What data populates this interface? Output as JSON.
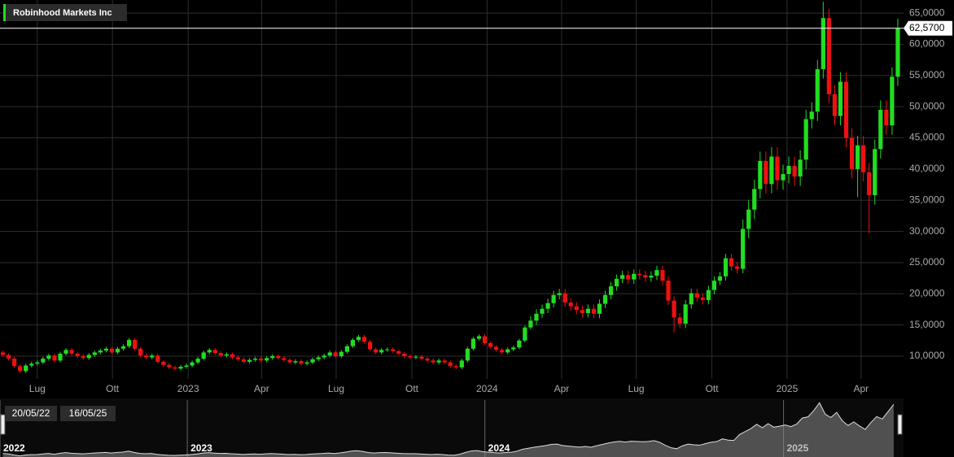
{
  "chart_data": {
    "type": "candlestick",
    "title": "Robinhood Markets Inc",
    "up_color": "#22dd22",
    "down_color": "#ee1111",
    "grid": true,
    "open": [
      10.6,
      10.2,
      9.6,
      8.4,
      7.6,
      8.5,
      8.8,
      9.0,
      9.6,
      10.1,
      9.3,
      10.4,
      11.0,
      10.4,
      10.0,
      9.7,
      10.2,
      10.6,
      10.9,
      11.2,
      10.6,
      11.2,
      11.6,
      12.6,
      11.2,
      10.1,
      9.8,
      10.1,
      9.1,
      8.6,
      8.2,
      8.0,
      8.3,
      8.5,
      9.0,
      9.6,
      10.6,
      11.0,
      10.5,
      10.1,
      10.3,
      9.8,
      9.5,
      9.1,
      9.4,
      9.6,
      9.3,
      9.7,
      10.0,
      9.7,
      9.4,
      9.0,
      9.2,
      8.8,
      9.0,
      9.5,
      9.8,
      10.1,
      10.6,
      10.0,
      10.7,
      11.6,
      12.6,
      13.1,
      12.3,
      11.1,
      10.6,
      11.0,
      11.1,
      10.8,
      10.4,
      10.0,
      9.8,
      9.9,
      9.6,
      9.3,
      9.0,
      9.3,
      9.0,
      8.4,
      8.2,
      9.3,
      11.2,
      12.8,
      13.2,
      12.1,
      11.5,
      11.0,
      10.6,
      11.1,
      11.4,
      12.5,
      14.6,
      15.7,
      16.8,
      17.6,
      18.5,
      19.8,
      20.1,
      18.6,
      18.0,
      17.4,
      16.9,
      17.6,
      16.8,
      18.4,
      19.8,
      21.2,
      22.4,
      23.0,
      22.3,
      23.2,
      23.0,
      22.6,
      22.9,
      23.8,
      22.1,
      18.9,
      16.2,
      15.2,
      18.3,
      20.1,
      19.4,
      19.0,
      20.6,
      22.1,
      22.8,
      25.7,
      24.4,
      24.0,
      30.4,
      33.5,
      36.8,
      41.3,
      37.6,
      42.0,
      38.2,
      39.2,
      40.5,
      38.8,
      41.5,
      48.0,
      49.2,
      56.0,
      64.2,
      52.0,
      48.5,
      54.0,
      45.0,
      40.0,
      43.8,
      39.5,
      35.8,
      43.2,
      49.5,
      47.0,
      54.8
    ],
    "high": [
      10.9,
      10.5,
      9.9,
      8.7,
      8.8,
      9.1,
      9.3,
      9.9,
      10.4,
      10.4,
      10.7,
      11.3,
      11.3,
      10.7,
      10.3,
      10.5,
      10.9,
      11.2,
      11.5,
      11.5,
      11.5,
      11.9,
      12.9,
      12.9,
      11.5,
      10.4,
      10.4,
      10.4,
      9.4,
      8.9,
      8.5,
      8.6,
      8.8,
      9.3,
      9.9,
      10.9,
      11.3,
      11.3,
      10.8,
      10.6,
      10.6,
      10.1,
      9.8,
      9.7,
      9.9,
      9.9,
      10.0,
      10.3,
      10.3,
      10.0,
      9.7,
      9.5,
      9.5,
      9.3,
      9.8,
      10.1,
      10.4,
      10.9,
      10.9,
      11.0,
      11.9,
      12.9,
      13.4,
      13.4,
      12.6,
      11.4,
      11.3,
      11.4,
      11.4,
      11.1,
      10.7,
      10.3,
      10.2,
      10.2,
      9.9,
      9.6,
      9.6,
      9.6,
      9.3,
      8.7,
      9.6,
      11.5,
      13.1,
      13.5,
      13.5,
      12.4,
      11.8,
      11.3,
      11.4,
      11.7,
      12.8,
      14.9,
      16.4,
      17.5,
      18.3,
      19.2,
      20.5,
      20.8,
      20.8,
      19.3,
      18.7,
      18.1,
      18.3,
      18.3,
      19.1,
      20.5,
      21.9,
      23.1,
      23.7,
      23.7,
      23.9,
      23.9,
      23.7,
      23.6,
      24.5,
      24.5,
      22.8,
      19.6,
      16.9,
      19.0,
      20.8,
      20.8,
      20.1,
      21.3,
      22.8,
      23.5,
      26.4,
      26.4,
      25.1,
      31.9,
      35.0,
      38.3,
      42.8,
      42.8,
      43.5,
      43.5,
      40.7,
      42.0,
      42.0,
      43.0,
      49.5,
      50.7,
      57.5,
      66.8,
      65.7,
      53.5,
      55.5,
      55.5,
      46.5,
      45.3,
      45.3,
      41.0,
      44.7,
      51.0,
      51.0,
      56.3,
      64.1
    ],
    "low": [
      9.9,
      9.3,
      8.1,
      7.3,
      7.3,
      8.2,
      8.5,
      8.7,
      9.3,
      9.0,
      9.0,
      10.1,
      10.1,
      9.7,
      9.4,
      9.4,
      9.9,
      10.3,
      10.6,
      10.3,
      10.3,
      10.9,
      11.3,
      10.9,
      9.8,
      9.5,
      9.5,
      8.8,
      8.3,
      7.9,
      7.7,
      7.7,
      8.0,
      8.2,
      8.7,
      9.3,
      10.3,
      10.2,
      9.8,
      9.8,
      9.5,
      9.2,
      8.8,
      8.8,
      9.1,
      9.0,
      9.0,
      9.4,
      9.4,
      9.1,
      8.7,
      8.7,
      8.5,
      8.5,
      8.7,
      9.2,
      9.5,
      9.8,
      9.7,
      9.7,
      10.4,
      11.3,
      12.3,
      12.0,
      10.8,
      10.3,
      10.3,
      10.7,
      10.5,
      10.1,
      9.7,
      9.5,
      9.5,
      9.3,
      9.0,
      8.7,
      8.7,
      8.7,
      8.1,
      7.9,
      7.9,
      9.0,
      10.9,
      12.5,
      11.8,
      11.2,
      10.7,
      10.3,
      10.3,
      10.8,
      11.1,
      12.2,
      14.3,
      15.0,
      16.1,
      16.9,
      17.8,
      19.1,
      17.9,
      17.3,
      16.7,
      16.2,
      16.2,
      16.1,
      16.1,
      17.7,
      19.1,
      20.5,
      21.7,
      21.6,
      21.6,
      22.3,
      21.9,
      21.9,
      22.2,
      21.4,
      18.2,
      13.8,
      14.5,
      14.5,
      17.6,
      18.7,
      18.3,
      18.3,
      19.9,
      21.4,
      22.1,
      23.7,
      23.3,
      23.3,
      28.9,
      32.0,
      35.3,
      36.1,
      36.1,
      36.7,
      36.7,
      37.7,
      37.3,
      37.3,
      40.0,
      46.5,
      47.7,
      54.5,
      50.5,
      47.0,
      47.0,
      43.5,
      38.5,
      35.5,
      38.0,
      29.7,
      34.3,
      41.7,
      45.5,
      45.5,
      53.3
    ],
    "close": [
      10.2,
      9.6,
      8.4,
      7.6,
      8.5,
      8.8,
      9.0,
      9.6,
      10.1,
      9.3,
      10.4,
      11.0,
      10.4,
      10.0,
      9.7,
      10.2,
      10.6,
      10.9,
      11.2,
      10.6,
      11.2,
      11.6,
      12.6,
      11.2,
      10.1,
      9.8,
      10.1,
      9.1,
      8.6,
      8.2,
      8.0,
      8.3,
      8.5,
      9.0,
      9.6,
      10.6,
      11.0,
      10.5,
      10.1,
      10.3,
      9.8,
      9.5,
      9.1,
      9.4,
      9.6,
      9.3,
      9.7,
      10.0,
      9.7,
      9.4,
      9.0,
      9.2,
      8.8,
      9.0,
      9.5,
      9.8,
      10.1,
      10.6,
      10.0,
      10.7,
      11.6,
      12.6,
      13.1,
      12.3,
      11.1,
      10.6,
      11.0,
      11.1,
      10.8,
      10.4,
      10.0,
      9.8,
      9.9,
      9.6,
      9.3,
      9.0,
      9.3,
      9.0,
      8.4,
      8.2,
      9.3,
      11.2,
      12.8,
      13.2,
      12.1,
      11.5,
      11.0,
      10.6,
      11.1,
      11.4,
      12.5,
      14.6,
      15.7,
      16.8,
      17.6,
      18.5,
      19.8,
      20.1,
      18.6,
      18.0,
      17.4,
      16.9,
      17.6,
      16.8,
      18.4,
      19.8,
      21.2,
      22.4,
      23.0,
      22.3,
      23.2,
      23.0,
      22.6,
      22.9,
      23.8,
      22.1,
      18.9,
      16.2,
      15.2,
      18.3,
      20.1,
      19.4,
      19.0,
      20.6,
      22.1,
      22.8,
      25.7,
      24.4,
      24.0,
      30.4,
      33.5,
      36.8,
      41.3,
      37.6,
      42.0,
      38.2,
      39.2,
      40.5,
      38.8,
      41.5,
      48.0,
      49.2,
      56.0,
      64.2,
      52.0,
      48.5,
      54.0,
      45.0,
      40.0,
      43.8,
      39.5,
      35.8,
      43.2,
      49.5,
      47.0,
      54.8,
      62.57
    ],
    "current_price": {
      "value": 62.57,
      "label": "62,5700"
    },
    "xlim": [
      -0.5,
      157
    ],
    "xticks": [
      {
        "value": 6,
        "label": "Lug"
      },
      {
        "value": 19.1,
        "label": "Ott"
      },
      {
        "value": 32.3,
        "label": "2023"
      },
      {
        "value": 45.1,
        "label": "Apr"
      },
      {
        "value": 58.1,
        "label": "Lug"
      },
      {
        "value": 71.3,
        "label": "Ott"
      },
      {
        "value": 84.4,
        "label": "2024"
      },
      {
        "value": 97.4,
        "label": "Apr"
      },
      {
        "value": 110.4,
        "label": "Lug"
      },
      {
        "value": 123.6,
        "label": "Ott"
      },
      {
        "value": 136.7,
        "label": "2025"
      },
      {
        "value": 149.6,
        "label": "Apr"
      }
    ],
    "ylim": [
      6.35,
      67.1
    ],
    "yticks": [
      {
        "value": 10,
        "label": "10,0000"
      },
      {
        "value": 15,
        "label": "15,0000"
      },
      {
        "value": 20,
        "label": "20,0000"
      },
      {
        "value": 25,
        "label": "25,0000"
      },
      {
        "value": 30,
        "label": "30,0000"
      },
      {
        "value": 35,
        "label": "35,0000"
      },
      {
        "value": 40,
        "label": "40,0000"
      },
      {
        "value": 45,
        "label": "45,0000"
      },
      {
        "value": 50,
        "label": "50,0000"
      },
      {
        "value": 55,
        "label": "55,0000"
      },
      {
        "value": 60,
        "label": "60,0000"
      },
      {
        "value": 65,
        "label": "65,0000"
      }
    ],
    "navigator": {
      "start_label": "20/05/22",
      "end_label": "16/05/25",
      "ticks": [
        {
          "value": -0.5,
          "label": "2022"
        },
        {
          "value": 32.3,
          "label": "2023"
        },
        {
          "value": 84.4,
          "label": "2024"
        },
        {
          "value": 136.7,
          "label": "2025"
        }
      ]
    }
  }
}
